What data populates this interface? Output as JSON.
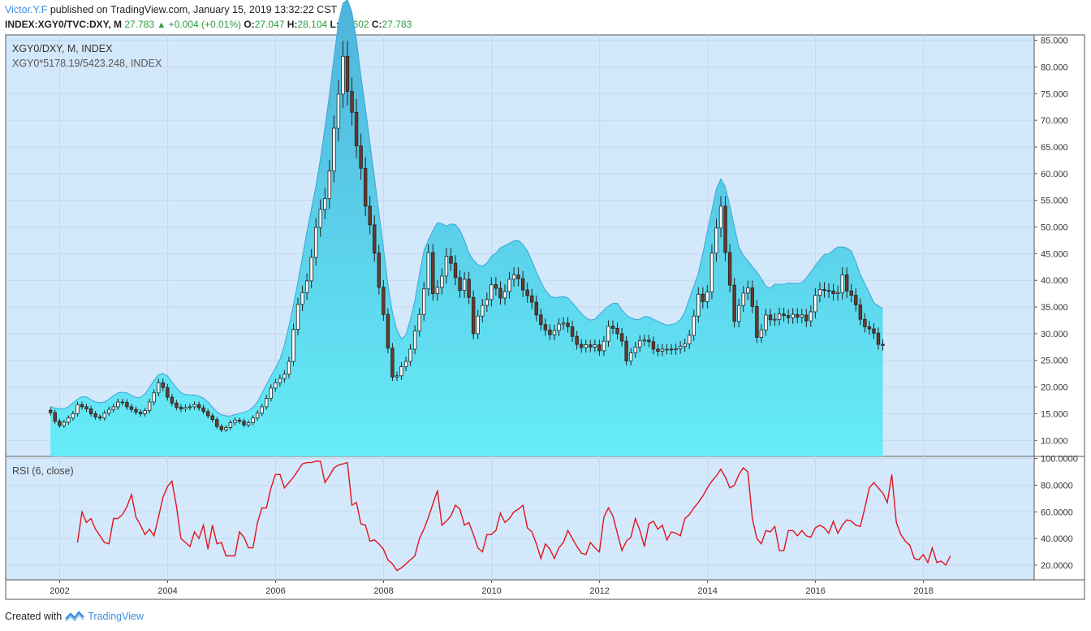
{
  "header": {
    "author": "Victor.Y.F",
    "published": "published on TradingView.com, January 15, 2019 13:32:22 CST",
    "symbol_line": "INDEX:XGY0/TVC:DXY, M",
    "last": "27.783",
    "change": "+0.004 (+0.01%)",
    "o_label": "O:",
    "o_val": "27.047",
    "h_label": "H:",
    "h_val": "28.104",
    "l_label": "L:",
    "l_val": "26.602",
    "c_label": "C:",
    "c_val": "27.783"
  },
  "legend": {
    "title": "XGY0/DXY, M, INDEX",
    "subtitle": "XGY0*5178.19/5423.248, INDEX"
  },
  "rsi_label": "RSI (6, close)",
  "footer": {
    "created": "Created with",
    "brand": "TradingView"
  },
  "colors": {
    "panel_bg": "#d4e8fb",
    "area_top": "#4fb3dc",
    "area_bottom": "#66ecf7",
    "candle_up": "#ffffff",
    "candle_down": "#6b3a2a",
    "candle_wick": "#222222",
    "rsi_line": "#e0141e",
    "grid": "#c2d8ee",
    "axis_text": "#333333"
  },
  "chart_data": [
    {
      "type": "candlestick-area",
      "y_ticks": [
        "85.000",
        "80.000",
        "75.000",
        "70.000",
        "65.000",
        "60.000",
        "55.000",
        "50.000",
        "45.000",
        "40.000",
        "35.000",
        "30.000",
        "25.000",
        "20.000",
        "15.000",
        "10.000"
      ],
      "ylim": [
        7,
        86
      ],
      "x_ticks": [
        "2002",
        "2004",
        "2006",
        "2008",
        "2010",
        "2012",
        "2014",
        "2016",
        "2018"
      ],
      "xlim": [
        2001.0,
        2020.05
      ],
      "candles": {
        "start": 2001.83,
        "step": 0.0833333,
        "close": [
          15.2,
          13.6,
          12.8,
          13.4,
          14.2,
          15.0,
          16.7,
          16.3,
          15.9,
          15.0,
          14.4,
          14.2,
          15.1,
          15.8,
          16.3,
          17.2,
          17.1,
          16.3,
          15.8,
          15.3,
          15.0,
          15.6,
          17.2,
          18.9,
          20.8,
          19.9,
          18.1,
          17.0,
          16.2,
          15.9,
          16.2,
          16.3,
          16.7,
          16.1,
          15.4,
          14.6,
          13.9,
          12.6,
          12.0,
          12.4,
          13.3,
          13.8,
          13.6,
          12.9,
          13.3,
          14.2,
          15.1,
          16.3,
          17.9,
          19.8,
          20.8,
          21.6,
          22.4,
          24.8,
          30.8,
          35.5,
          37.7,
          39.9,
          44.3,
          49.9,
          53.3,
          55.3,
          60.5,
          68.5,
          74.9,
          82.0,
          75.4,
          71.5,
          65.2,
          61.0,
          53.9,
          50.4,
          45.1,
          38.7,
          33.6,
          27.3,
          21.9,
          22.1,
          23.8,
          24.8,
          27.1,
          30.5,
          33.6,
          38.4,
          45.2,
          37.5,
          38.7,
          40.8,
          44.5,
          43.2,
          40.5,
          38.1,
          40.2,
          36.8,
          30.0,
          33.3,
          35.3,
          36.4,
          39.2,
          38.5,
          36.7,
          37.9,
          40.2,
          41.0,
          40.3,
          38.2,
          37.1,
          35.9,
          33.5,
          31.7,
          30.7,
          29.8,
          30.6,
          31.8,
          32.0,
          31.3,
          29.5,
          28.0,
          27.4,
          27.9,
          27.5,
          27.9,
          26.8,
          28.6,
          31.4,
          31.0,
          30.0,
          28.6,
          24.9,
          26.4,
          27.5,
          28.7,
          28.8,
          28.5,
          27.1,
          26.7,
          27.1,
          27.1,
          27.0,
          27.2,
          27.6,
          28.1,
          29.7,
          33.3,
          37.4,
          36.0,
          37.8,
          45.1,
          49.8,
          53.9,
          45.2,
          39.1,
          32.3,
          35.3,
          37.6,
          38.6,
          35.1,
          29.3,
          30.7,
          33.5,
          32.6,
          32.7,
          33.7,
          33.4,
          33.0,
          33.6,
          33.1,
          33.5,
          32.4,
          34.1,
          37.2,
          38.3,
          38.1,
          38.0,
          37.5,
          37.7,
          41.0,
          38.0,
          37.2,
          35.4,
          32.7,
          31.3,
          30.9,
          30.1,
          28.0,
          27.8
        ]
      }
    },
    {
      "type": "line",
      "title": "RSI (6, close)",
      "y_ticks": [
        "100.0000",
        "80.0000",
        "60.0000",
        "40.0000",
        "20.0000"
      ],
      "ylim": [
        9,
        101
      ],
      "x_ticks": [
        "2002",
        "2004",
        "2006",
        "2008",
        "2010",
        "2012",
        "2014",
        "2016",
        "2018"
      ],
      "series": [
        {
          "start": 2002.33,
          "step": 0.0833333,
          "values": [
            37,
            60,
            52,
            55,
            47,
            42,
            37,
            36,
            55,
            55,
            58,
            64,
            73,
            56,
            50,
            43,
            47,
            42,
            56,
            71,
            79,
            83,
            64,
            40,
            37,
            34,
            45,
            40,
            50,
            32,
            50,
            36,
            37,
            27,
            27,
            27,
            45,
            41,
            33,
            33,
            52,
            63,
            63,
            78,
            88,
            88,
            78,
            82,
            86,
            91,
            96,
            97,
            97,
            98,
            98,
            82,
            87,
            93,
            95,
            96,
            97,
            65,
            67,
            51,
            50,
            38,
            39,
            36,
            32,
            24,
            21,
            16,
            18,
            21,
            24,
            27,
            40,
            47,
            56,
            66,
            76,
            50,
            53,
            57,
            65,
            62,
            50,
            52,
            43,
            33,
            30,
            43,
            43,
            46,
            59,
            52,
            55,
            60,
            62,
            65,
            48,
            45,
            36,
            25,
            36,
            32,
            25,
            33,
            37,
            46,
            40,
            34,
            29,
            28,
            37,
            33,
            30,
            56,
            63,
            57,
            44,
            31,
            38,
            41,
            55,
            46,
            34,
            51,
            53,
            47,
            50,
            39,
            45,
            44,
            42,
            55,
            58,
            63,
            67,
            72,
            78,
            83,
            87,
            92,
            86,
            78,
            80,
            88,
            93,
            90,
            55,
            40,
            36,
            46,
            45,
            49,
            31,
            31,
            46,
            46,
            42,
            46,
            42,
            41,
            48,
            50,
            48,
            44,
            53,
            44,
            50,
            54,
            53,
            50,
            49,
            63,
            78,
            82,
            78,
            74,
            67,
            88,
            52,
            43,
            38,
            35,
            25,
            24,
            28,
            22,
            33,
            22,
            23,
            20,
            27
          ]
        }
      ]
    }
  ]
}
